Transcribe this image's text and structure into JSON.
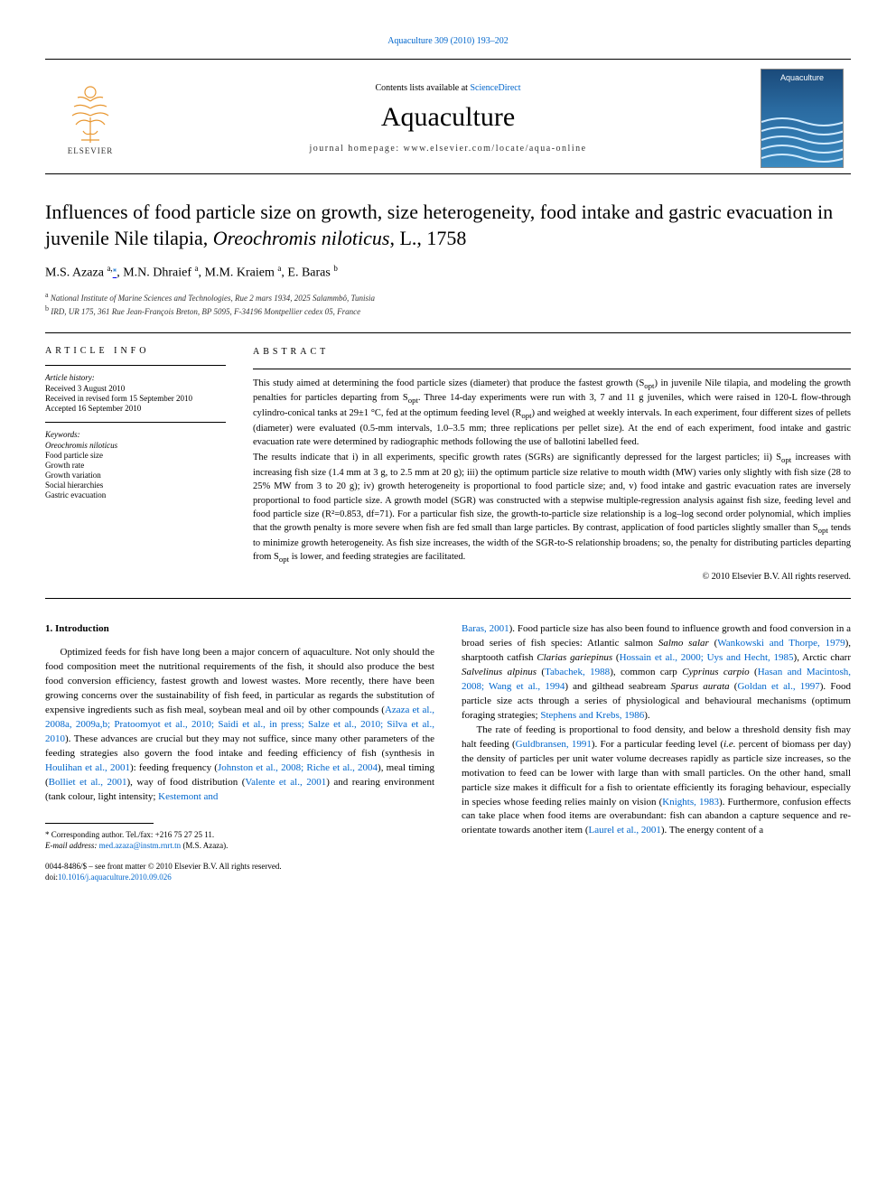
{
  "header": {
    "citation_link": "Aquaculture 309 (2010) 193–202",
    "contents_prefix": "Contents lists available at ",
    "contents_link": "ScienceDirect",
    "journal": "Aquaculture",
    "homepage_prefix": "journal homepage: ",
    "homepage": "www.elsevier.com/locate/aqua-online",
    "publisher_label": "ELSEVIER",
    "cover_label": "Aquaculture"
  },
  "colors": {
    "link": "#0066cc",
    "text": "#000000",
    "elsevier_orange": "#e8962f",
    "cover_top": "#1a4a7a",
    "cover_bottom": "#3a8ac0",
    "background": "#ffffff"
  },
  "article": {
    "title": "Influences of food particle size on growth, size heterogeneity, food intake and gastric evacuation in juvenile Nile tilapia, Oreochromis niloticus, L., 1758",
    "authors_html": "M.S. Azaza <sup>a,</sup><sup class=\"corr\">*</sup>, M.N. Dhraief <sup>a</sup>, M.M. Kraiem <sup>a</sup>, E. Baras <sup>b</sup>",
    "affiliations": [
      {
        "key": "a",
        "text": "National Institute of Marine Sciences and Technologies, Rue 2 mars 1934, 2025 Salammbô, Tunisia"
      },
      {
        "key": "b",
        "text": "IRD, UR 175, 361 Rue Jean-François Breton, BP 5095, F-34196 Montpellier cedex 05, France"
      }
    ]
  },
  "info": {
    "heading": "ARTICLE INFO",
    "history_label": "Article history:",
    "history": [
      "Received 3 August 2010",
      "Received in revised form 15 September 2010",
      "Accepted 16 September 2010"
    ],
    "keywords_label": "Keywords:",
    "keywords": [
      "Oreochromis niloticus",
      "Food particle size",
      "Growth rate",
      "Growth variation",
      "Social hierarchies",
      "Gastric evacuation"
    ]
  },
  "abstract": {
    "heading": "ABSTRACT",
    "p1": "This study aimed at determining the food particle sizes (diameter) that produce the fastest growth (Sopt) in juvenile Nile tilapia, and modeling the growth penalties for particles departing from Sopt. Three 14-day experiments were run with 3, 7 and 11 g juveniles, which were raised in 120-L flow-through cylindro-conical tanks at 29±1 °C, fed at the optimum feeding level (Ropt) and weighed at weekly intervals. In each experiment, four different sizes of pellets (diameter) were evaluated (0.5-mm intervals, 1.0–3.5 mm; three replications per pellet size). At the end of each experiment, food intake and gastric evacuation rate were determined by radiographic methods following the use of ballotini labelled feed.",
    "p2": "The results indicate that i) in all experiments, specific growth rates (SGRs) are significantly depressed for the largest particles; ii) Sopt increases with increasing fish size (1.4 mm at 3 g, to 2.5 mm at 20 g); iii) the optimum particle size relative to mouth width (MW) varies only slightly with fish size (28 to 25% MW from 3 to 20 g); iv) growth heterogeneity is proportional to food particle size; and, v) food intake and gastric evacuation rates are inversely proportional to food particle size. A growth model (SGR) was constructed with a stepwise multiple-regression analysis against fish size, feeding level and food particle size (R²=0.853, df=71). For a particular fish size, the growth-to-particle size relationship is a log–log second order polynomial, which implies that the growth penalty is more severe when fish are fed small than large particles. By contrast, application of food particles slightly smaller than Sopt tends to minimize growth heterogeneity. As fish size increases, the width of the SGR-to-S relationship broadens; so, the penalty for distributing particles departing from Sopt is lower, and feeding strategies are facilitated.",
    "copyright": "© 2010 Elsevier B.V. All rights reserved."
  },
  "intro": {
    "heading": "1. Introduction",
    "left": "Optimized feeds for fish have long been a major concern of aquaculture. Not only should the food composition meet the nutritional requirements of the fish, it should also produce the best food conversion efficiency, fastest growth and lowest wastes. More recently, there have been growing concerns over the sustainability of fish feed, in particular as regards the substitution of expensive ingredients such as fish meal, soybean meal and oil by other compounds (<a href=\"#\">Azaza et al., 2008a, 2009a,b; Pratoomyot et al., 2010; Saidi et al., in press; Salze et al., 2010; Silva et al., 2010</a>). These advances are crucial but they may not suffice, since many other parameters of the feeding strategies also govern the food intake and feeding efficiency of fish (synthesis in <a href=\"#\">Houlihan et al., 2001</a>): feeding frequency (<a href=\"#\">Johnston et al., 2008; Riche et al., 2004</a>), meal timing (<a href=\"#\">Bolliet et al., 2001</a>), way of food distribution (<a href=\"#\">Valente et al., 2001</a>) and rearing environment (tank colour, light intensity; <a href=\"#\">Kestemont and</a>",
    "right_top": "<a href=\"#\">Baras, 2001</a>). Food particle size has also been found to influence growth and food conversion in a broad series of fish species: Atlantic salmon <i>Salmo salar</i> (<a href=\"#\">Wankowski and Thorpe, 1979</a>), sharptooth catfish <i>Clarias gariepinus</i> (<a href=\"#\">Hossain et al., 2000; Uys and Hecht, 1985</a>), Arctic charr <i>Salvelinus alpinus</i> (<a href=\"#\">Tabachek, 1988</a>), common carp <i>Cyprinus carpio</i> (<a href=\"#\">Hasan and Macintosh, 2008; Wang et al., 1994</a>) and gilthead seabream <i>Sparus aurata</i> (<a href=\"#\">Goldan et al., 1997</a>). Food particle size acts through a series of physiological and behavioural mechanisms (optimum foraging strategies; <a href=\"#\">Stephens and Krebs, 1986</a>).",
    "right_p2": "The rate of feeding is proportional to food density, and below a threshold density fish may halt feeding (<a href=\"#\">Guldbransen, 1991</a>). For a particular feeding level (<i>i.e.</i> percent of biomass per day) the density of particles per unit water volume decreases rapidly as particle size increases, so the motivation to feed can be lower with large than with small particles. On the other hand, small particle size makes it difficult for a fish to orientate efficiently its foraging behaviour, especially in species whose feeding relies mainly on vision (<a href=\"#\">Knights, 1983</a>). Furthermore, confusion effects can take place when food items are overabundant: fish can abandon a capture sequence and re-orientate towards another item (<a href=\"#\">Laurel et al., 2001</a>). The energy content of a"
  },
  "footnotes": {
    "corr_label": "* Corresponding author. Tel./fax: +216 75 27 25 11.",
    "email_label": "E-mail address:",
    "email": "med.azaza@instm.rnrt.tn",
    "email_suffix": "(M.S. Azaza)."
  },
  "footer": {
    "issn": "0044-8486/$ – see front matter © 2010 Elsevier B.V. All rights reserved.",
    "doi_label": "doi:",
    "doi": "10.1016/j.aquaculture.2010.09.026"
  }
}
